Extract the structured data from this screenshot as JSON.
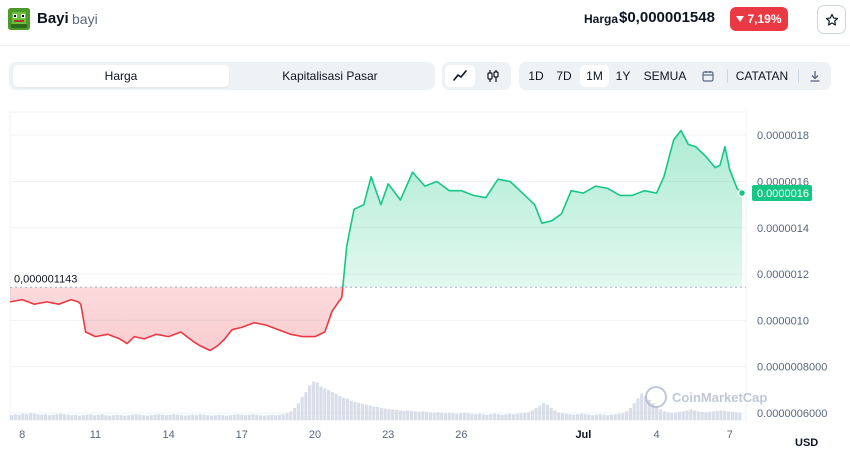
{
  "header": {
    "coin_name": "Bayi",
    "coin_symbol": "bayi",
    "price_label": "Harga :",
    "price_value": "$0,000001548",
    "change": "7,19%",
    "change_color": "#ea3943",
    "star_icon": "star-icon",
    "logo_icon": "pixel-frog-logo"
  },
  "toolbar": {
    "tabs": [
      "Harga",
      "Kapitalisasi Pasar"
    ],
    "active_tab": "Harga",
    "chart_types": [
      "line-chart-icon",
      "candlestick-icon"
    ],
    "active_chart_type": "line-chart-icon",
    "ranges": [
      "1D",
      "7D",
      "1M",
      "1Y",
      "SEMUA"
    ],
    "active_range": "1M",
    "calendar_icon": "calendar-icon",
    "notes_label": "CATATAN",
    "download_icon": "download-icon"
  },
  "chart_data": {
    "type": "area",
    "y_ticks": [
      "0.0000018",
      "0.0000016",
      "0.0000014",
      "0.0000012",
      "0.0000010",
      "0.0000008000",
      "0.0000006000"
    ],
    "x_ticks": [
      "8",
      "11",
      "14",
      "17",
      "20",
      "23",
      "26",
      "Jul",
      "4",
      "7"
    ],
    "reference_label": "0,000001143",
    "reference_value": 1.143e-06,
    "current_price_label": "0.0000016",
    "current_price": 1.55e-06,
    "currency": "USD",
    "watermark": "CoinMarketCap",
    "up_color": "#16c784",
    "down_color": "#ea3943",
    "ylim": [
      5.7e-07,
      1.9e-06
    ],
    "xlim": [
      7.5,
      37.5
    ],
    "series": [
      [
        7.5,
        1.08e-06
      ],
      [
        8.0,
        1.09e-06
      ],
      [
        8.5,
        1.07e-06
      ],
      [
        9.0,
        1.08e-06
      ],
      [
        9.5,
        1.07e-06
      ],
      [
        10.0,
        1.09e-06
      ],
      [
        10.3,
        1.08e-06
      ],
      [
        10.4,
        1.07e-06
      ],
      [
        10.6,
        9.5e-07
      ],
      [
        11.0,
        9.3e-07
      ],
      [
        11.5,
        9.4e-07
      ],
      [
        12.0,
        9.2e-07
      ],
      [
        12.3,
        9e-07
      ],
      [
        12.6,
        9.3e-07
      ],
      [
        13.0,
        9.2e-07
      ],
      [
        13.5,
        9.4e-07
      ],
      [
        14.0,
        9.3e-07
      ],
      [
        14.5,
        9.5e-07
      ],
      [
        15.0,
        9.1e-07
      ],
      [
        15.3,
        8.9e-07
      ],
      [
        15.7,
        8.7e-07
      ],
      [
        16.0,
        8.9e-07
      ],
      [
        16.3,
        9.2e-07
      ],
      [
        16.6,
        9.6e-07
      ],
      [
        17.0,
        9.7e-07
      ],
      [
        17.5,
        9.9e-07
      ],
      [
        18.0,
        9.8e-07
      ],
      [
        18.5,
        9.6e-07
      ],
      [
        19.0,
        9.4e-07
      ],
      [
        19.5,
        9.3e-07
      ],
      [
        20.0,
        9.3e-07
      ],
      [
        20.4,
        9.5e-07
      ],
      [
        20.7,
        1.04e-06
      ],
      [
        21.1,
        1.1e-06
      ],
      [
        21.3,
        1.32e-06
      ],
      [
        21.6,
        1.48e-06
      ],
      [
        22.0,
        1.5e-06
      ],
      [
        22.3,
        1.62e-06
      ],
      [
        22.7,
        1.5e-06
      ],
      [
        23.0,
        1.59e-06
      ],
      [
        23.5,
        1.52e-06
      ],
      [
        24.0,
        1.64e-06
      ],
      [
        24.5,
        1.58e-06
      ],
      [
        25.0,
        1.6e-06
      ],
      [
        25.5,
        1.56e-06
      ],
      [
        26.0,
        1.56e-06
      ],
      [
        26.5,
        1.54e-06
      ],
      [
        27.0,
        1.53e-06
      ],
      [
        27.5,
        1.61e-06
      ],
      [
        28.0,
        1.6e-06
      ],
      [
        28.5,
        1.55e-06
      ],
      [
        29.0,
        1.5e-06
      ],
      [
        29.3,
        1.42e-06
      ],
      [
        29.7,
        1.43e-06
      ],
      [
        30.1,
        1.46e-06
      ],
      [
        30.5,
        1.56e-06
      ],
      [
        31.0,
        1.55e-06
      ],
      [
        31.5,
        1.58e-06
      ],
      [
        32.0,
        1.57e-06
      ],
      [
        32.5,
        1.54e-06
      ],
      [
        33.0,
        1.54e-06
      ],
      [
        33.5,
        1.56e-06
      ],
      [
        34.0,
        1.55e-06
      ],
      [
        34.3,
        1.62e-06
      ],
      [
        34.7,
        1.78e-06
      ],
      [
        35.0,
        1.82e-06
      ],
      [
        35.3,
        1.76e-06
      ],
      [
        35.6,
        1.75e-06
      ],
      [
        36.0,
        1.71e-06
      ],
      [
        36.4,
        1.66e-06
      ],
      [
        36.6,
        1.67e-06
      ],
      [
        36.8,
        1.75e-06
      ],
      [
        37.0,
        1.65e-06
      ],
      [
        37.3,
        1.57e-06
      ],
      [
        37.5,
        1.55e-06
      ]
    ],
    "volume": [
      0.1,
      0.12,
      0.11,
      0.13,
      0.12,
      0.14,
      0.13,
      0.12,
      0.11,
      0.12,
      0.1,
      0.11,
      0.12,
      0.13,
      0.12,
      0.11,
      0.1,
      0.11,
      0.09,
      0.1,
      0.11,
      0.12,
      0.1,
      0.11,
      0.12,
      0.1,
      0.09,
      0.1,
      0.11,
      0.1,
      0.09,
      0.1,
      0.11,
      0.12,
      0.11,
      0.1,
      0.09,
      0.1,
      0.11,
      0.12,
      0.11,
      0.1,
      0.11,
      0.12,
      0.11,
      0.1,
      0.09,
      0.1,
      0.11,
      0.1,
      0.12,
      0.11,
      0.1,
      0.09,
      0.1,
      0.11,
      0.1,
      0.09,
      0.1,
      0.11,
      0.12,
      0.11,
      0.1,
      0.11,
      0.12,
      0.11,
      0.1,
      0.09,
      0.1,
      0.11,
      0.1,
      0.11,
      0.12,
      0.14,
      0.18,
      0.25,
      0.35,
      0.48,
      0.58,
      0.72,
      0.8,
      0.78,
      0.7,
      0.66,
      0.62,
      0.58,
      0.55,
      0.5,
      0.46,
      0.44,
      0.4,
      0.38,
      0.36,
      0.34,
      0.32,
      0.3,
      0.28,
      0.27,
      0.25,
      0.24,
      0.23,
      0.22,
      0.21,
      0.2,
      0.19,
      0.2,
      0.19,
      0.18,
      0.17,
      0.18,
      0.17,
      0.16,
      0.15,
      0.16,
      0.15,
      0.14,
      0.15,
      0.14,
      0.13,
      0.14,
      0.15,
      0.14,
      0.13,
      0.12,
      0.13,
      0.12,
      0.11,
      0.12,
      0.13,
      0.12,
      0.11,
      0.12,
      0.13,
      0.12,
      0.13,
      0.14,
      0.15,
      0.16,
      0.2,
      0.25,
      0.3,
      0.35,
      0.32,
      0.25,
      0.2,
      0.16,
      0.14,
      0.13,
      0.12,
      0.11,
      0.12,
      0.13,
      0.12,
      0.11,
      0.1,
      0.11,
      0.12,
      0.11,
      0.1,
      0.11,
      0.12,
      0.13,
      0.14,
      0.18,
      0.25,
      0.35,
      0.45,
      0.55,
      0.5,
      0.42,
      0.35,
      0.28,
      0.22,
      0.18,
      0.16,
      0.15,
      0.16,
      0.17,
      0.18,
      0.2,
      0.22,
      0.2,
      0.18,
      0.17,
      0.16,
      0.17,
      0.18,
      0.19,
      0.2,
      0.19,
      0.18,
      0.17,
      0.16,
      0.15
    ]
  }
}
